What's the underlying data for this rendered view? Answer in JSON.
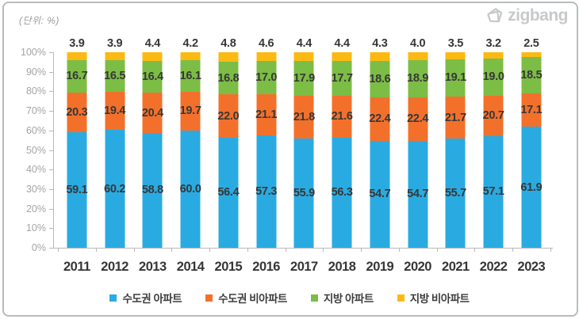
{
  "header": {
    "unit_label": "(단위: %)",
    "brand": "zigbang"
  },
  "chart_data": {
    "type": "bar",
    "variant": "stacked-100-percent-column",
    "title": "",
    "xlabel": "",
    "ylabel": "",
    "unit": "%",
    "ylim": [
      0,
      100
    ],
    "grid": false,
    "legend_position": "bottom",
    "y_tick_labels": [
      "100%",
      "90%",
      "80%",
      "70%",
      "60%",
      "50%",
      "40%",
      "30%",
      "20%",
      "10%",
      "0%"
    ],
    "categories": [
      "2011",
      "2012",
      "2013",
      "2014",
      "2015",
      "2016",
      "2017",
      "2018",
      "2019",
      "2020",
      "2021",
      "2022",
      "2023"
    ],
    "series": [
      {
        "name": "수도권 아파트",
        "color": "#29abe2",
        "values": [
          59.1,
          60.2,
          58.8,
          60.0,
          56.4,
          57.3,
          55.9,
          56.3,
          54.7,
          54.7,
          55.7,
          57.1,
          61.9
        ]
      },
      {
        "name": "수도권 비아파트",
        "color": "#f3702b",
        "values": [
          20.3,
          19.4,
          20.4,
          19.7,
          22.0,
          21.1,
          21.8,
          21.6,
          22.4,
          22.4,
          21.7,
          20.7,
          17.1
        ]
      },
      {
        "name": "지방 아파트",
        "color": "#7cbd45",
        "values": [
          16.7,
          16.5,
          16.4,
          16.1,
          16.8,
          17.0,
          17.9,
          17.7,
          18.6,
          18.9,
          19.1,
          19.0,
          18.5
        ]
      },
      {
        "name": "지방 비아파트",
        "color": "#fdb913",
        "values": [
          3.9,
          3.9,
          4.4,
          4.2,
          4.8,
          4.6,
          4.4,
          4.4,
          4.3,
          4.0,
          3.5,
          3.2,
          2.5
        ]
      }
    ],
    "colors": {
      "axis": "#b8b8b8",
      "y_tick_text": "#a4a4a4",
      "value_label_text": "#373737",
      "year_label_text": "#363636",
      "card_border": "#b7bbbd",
      "brand_gray": "#c7c9ca"
    }
  }
}
